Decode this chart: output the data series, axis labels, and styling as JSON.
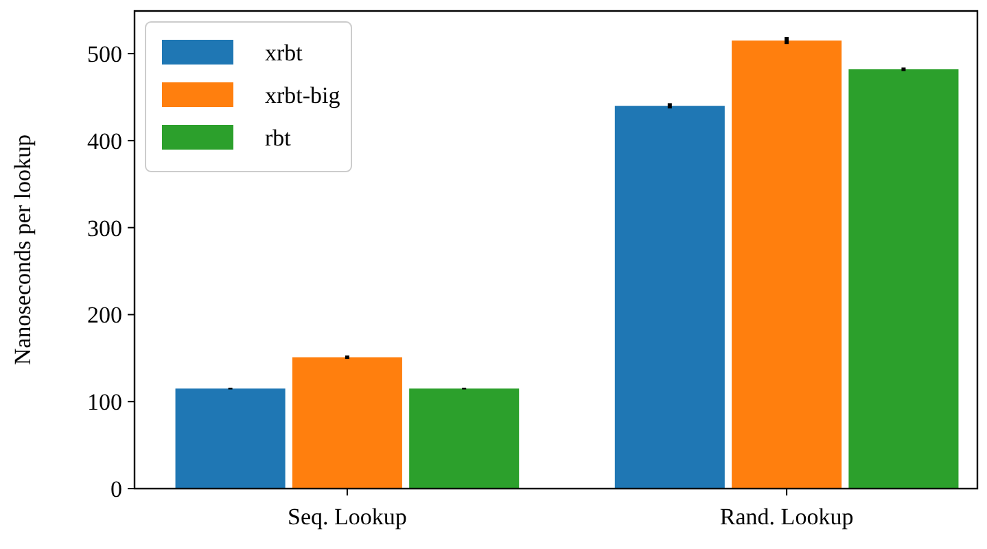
{
  "chart_data": {
    "type": "bar",
    "ylabel": "Nanoseconds per lookup",
    "categories": [
      "Seq. Lookup",
      "Rand. Lookup"
    ],
    "series": [
      {
        "name": "xrbt",
        "color": "#1f77b4",
        "values": [
          115,
          440
        ],
        "errors": [
          1,
          3
        ]
      },
      {
        "name": "xrbt-big",
        "color": "#ff7f0e",
        "values": [
          151,
          515
        ],
        "errors": [
          2,
          4
        ]
      },
      {
        "name": "rbt",
        "color": "#2ca02c",
        "values": [
          115,
          482
        ],
        "errors": [
          1,
          2
        ]
      }
    ],
    "ylim": [
      0,
      549
    ],
    "yticks": [
      0,
      100,
      200,
      300,
      400,
      500
    ],
    "grid": false,
    "legend": "top left"
  }
}
